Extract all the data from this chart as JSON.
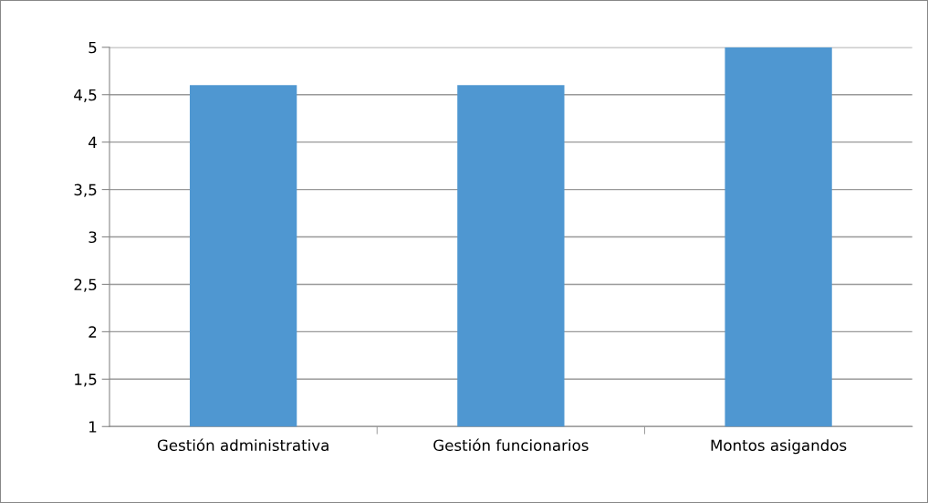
{
  "chart_data": {
    "type": "bar",
    "categories": [
      "Gestión administrativa",
      "Gestión funcionarios",
      "Montos asigandos"
    ],
    "values": [
      4.6,
      4.6,
      5
    ],
    "color": "#4f97d1",
    "ylim": [
      1,
      5
    ],
    "yticks": [
      1,
      {
        "value": 1.5,
        "label": "1,5"
      },
      2,
      {
        "value": 2.5,
        "label": "2,5"
      },
      3,
      {
        "value": 3.5,
        "label": "3,5"
      },
      4,
      {
        "value": 4.5,
        "label": "4,5"
      },
      5
    ],
    "grid": "y"
  }
}
